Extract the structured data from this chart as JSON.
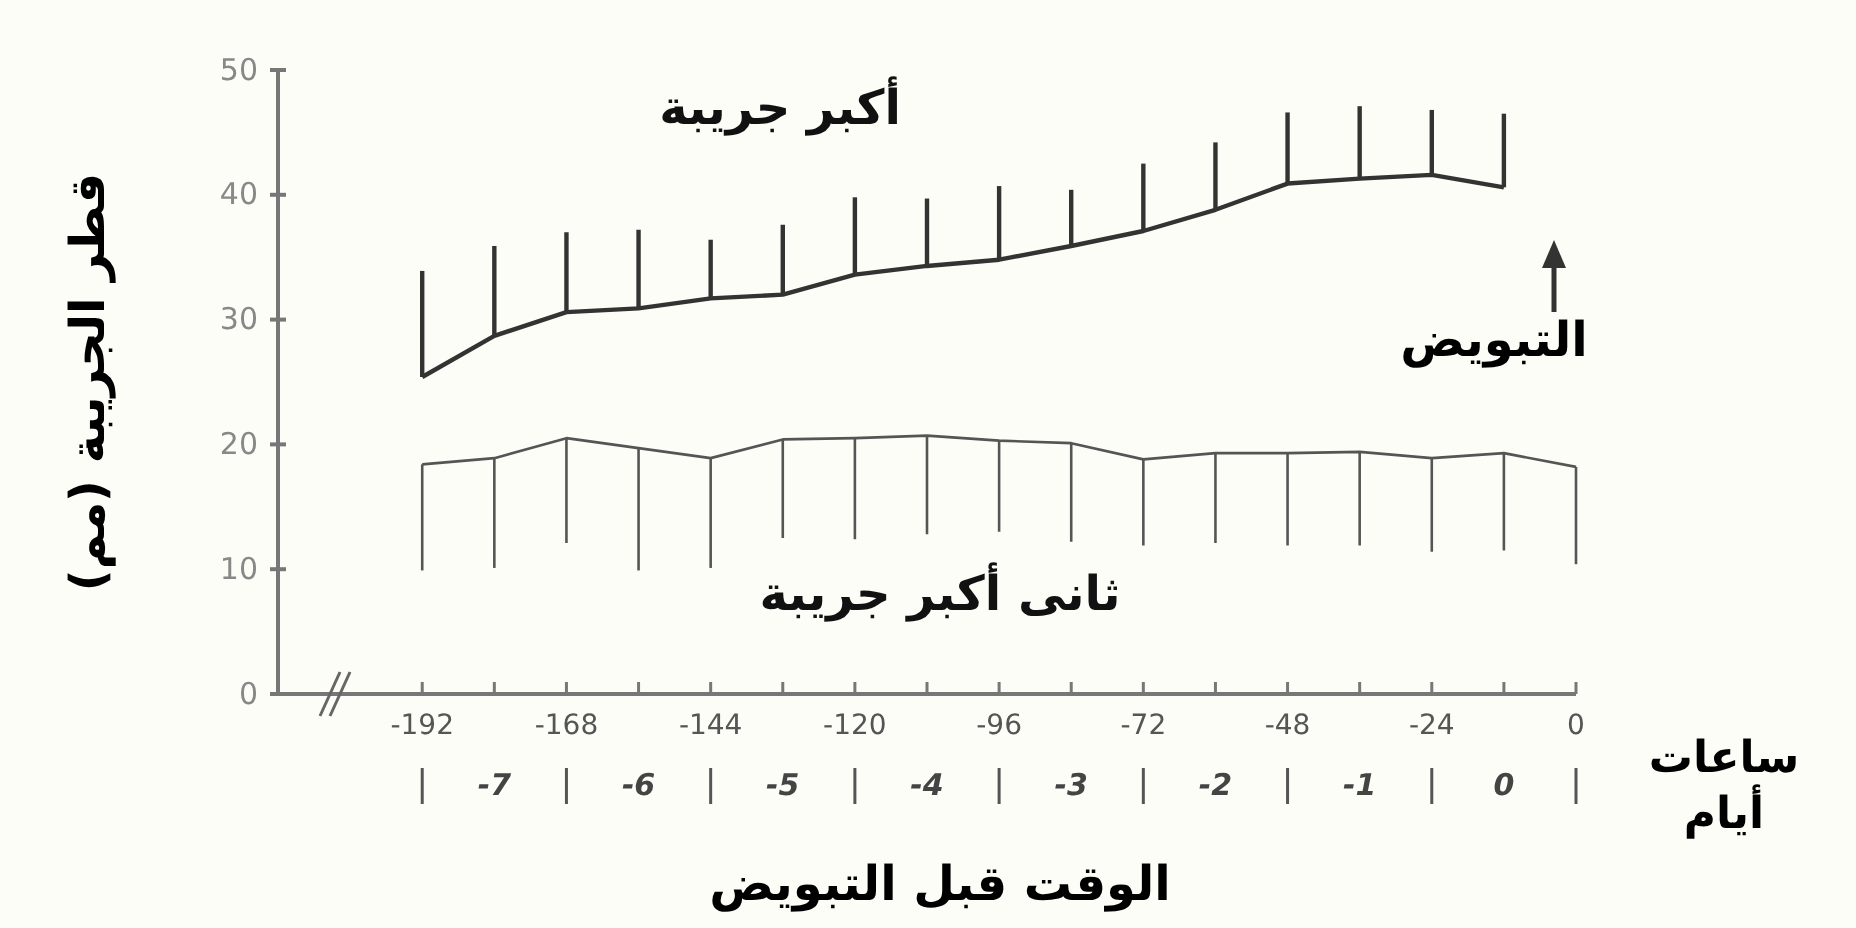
{
  "chart_data": {
    "type": "line",
    "xlabel": "الوقت قبل التبويض",
    "ylabel": "قطر الجريبة (مم)",
    "x2label": "أيام",
    "xlim": [
      -216,
      0
    ],
    "xticks": [
      -192,
      {
        "value": -180,
        "label": null
      },
      -168,
      {
        "value": -156,
        "label": null
      },
      -144,
      {
        "value": -132,
        "label": null
      },
      -120,
      {
        "value": -108,
        "label": null
      },
      -96,
      {
        "value": -84,
        "label": null
      },
      -72,
      {
        "value": -60,
        "label": null
      },
      -48,
      {
        "value": -36,
        "label": null
      },
      -24,
      {
        "value": -12,
        "label": null
      },
      0
    ],
    "x2lim": [
      -8.5,
      0.5
    ],
    "x2ticks": [
      -7,
      -6,
      -5,
      -4,
      -3,
      -2,
      -1,
      0
    ],
    "ylim": [
      0,
      50
    ],
    "yticks": [
      0,
      10,
      20,
      30,
      40,
      50
    ],
    "marker": "none",
    "line_style": "solid",
    "series": [
      {
        "name": "أكبر جريبة",
        "color": "#333333",
        "x": [
          -192,
          -180,
          -168,
          -156,
          -144,
          -132,
          -120,
          -108,
          -96,
          -84,
          -72,
          -60,
          -48,
          -36,
          -24,
          -12
        ],
        "values": [
          25.4,
          28.7,
          30.6,
          30.9,
          31.7,
          32.0,
          33.6,
          34.3,
          34.8,
          35.9,
          37.1,
          38.8,
          40.9,
          41.3,
          41.6,
          40.6
        ],
        "errors": [
          [
            25.4,
            33.9
          ],
          [
            28.7,
            35.9
          ],
          [
            30.6,
            37.0
          ],
          [
            30.9,
            37.2
          ],
          [
            31.7,
            36.4
          ],
          [
            32.0,
            37.6
          ],
          [
            33.6,
            39.8
          ],
          [
            34.3,
            39.7
          ],
          [
            34.8,
            40.7
          ],
          [
            35.9,
            40.4
          ],
          [
            37.1,
            42.5
          ],
          [
            38.8,
            44.2
          ],
          [
            40.9,
            46.6
          ],
          [
            41.3,
            47.1
          ],
          [
            41.6,
            46.8
          ],
          [
            40.6,
            46.5
          ]
        ]
      },
      {
        "name": "ثانى أكبر جريبة",
        "color": "#555555",
        "x": [
          -192,
          -180,
          -168,
          -156,
          -144,
          -132,
          -120,
          -108,
          -96,
          -84,
          -72,
          -60,
          -48,
          -36,
          -24,
          -12,
          0
        ],
        "values": [
          18.4,
          18.9,
          20.5,
          19.7,
          18.9,
          20.4,
          20.5,
          20.7,
          20.3,
          20.1,
          18.8,
          19.3,
          19.3,
          19.4,
          18.9,
          19.3,
          18.2
        ],
        "errors": [
          [
            9.9,
            18.4
          ],
          [
            10.1,
            18.9
          ],
          [
            12.1,
            20.5
          ],
          [
            9.9,
            19.7
          ],
          [
            10.1,
            18.9
          ],
          [
            12.5,
            20.4
          ],
          [
            12.4,
            20.5
          ],
          [
            12.8,
            20.7
          ],
          [
            13.0,
            20.3
          ],
          [
            12.2,
            20.1
          ],
          [
            11.9,
            18.8
          ],
          [
            12.1,
            19.3
          ],
          [
            11.9,
            19.3
          ],
          [
            11.9,
            19.4
          ],
          [
            11.4,
            18.9
          ],
          [
            11.5,
            19.3
          ],
          [
            10.4,
            18.2
          ]
        ]
      }
    ],
    "annotations": [
      "التبويض",
      "ساعات"
    ]
  }
}
